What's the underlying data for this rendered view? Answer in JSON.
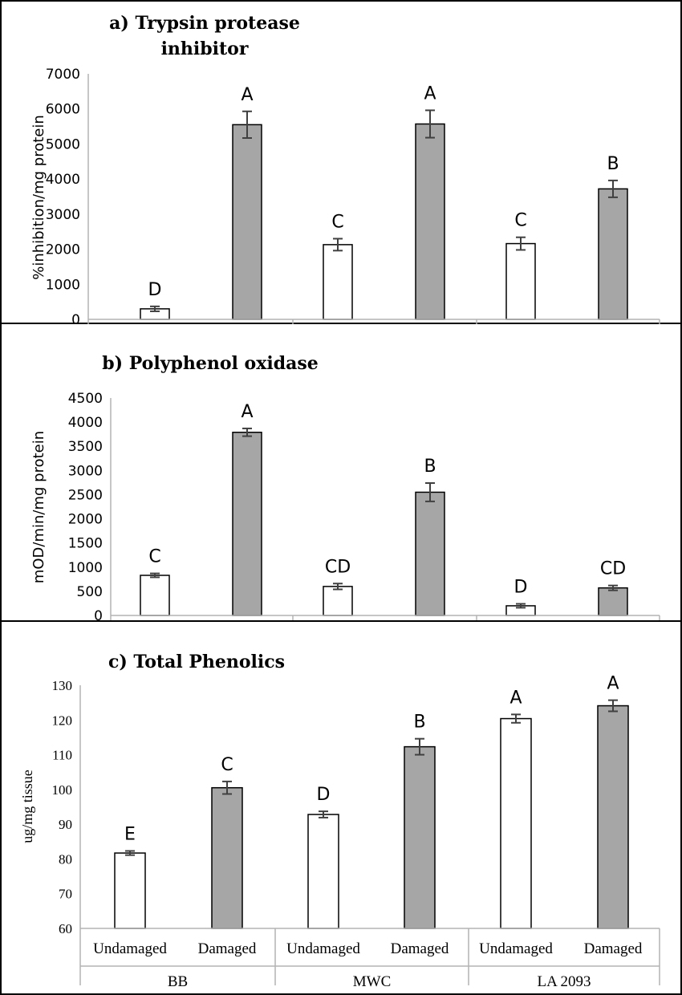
{
  "chart_data": [
    {
      "type": "bar",
      "title_line1": "a) Trypsin protease",
      "title_line2": "inhibitor",
      "ylabel": "%inhibition/mg protein",
      "ylim": [
        0,
        7000
      ],
      "yticks": [
        "0",
        "1000",
        "2000",
        "3000",
        "4000",
        "5000",
        "6000",
        "7000"
      ],
      "grid": false,
      "categories": [
        "Undamaged",
        "Damaged",
        "Undamaged",
        "Damaged",
        "Undamaged",
        "Damaged"
      ],
      "groups": [
        "BB",
        "MWC",
        "LA 2093"
      ],
      "values": [
        300,
        5550,
        2130,
        5570,
        2160,
        3720
      ],
      "errors": [
        70,
        380,
        170,
        390,
        180,
        240
      ],
      "letters": [
        "D",
        "A",
        "C",
        "A",
        "C",
        "B"
      ],
      "colors": [
        "#ffffff",
        "#a6a6a6",
        "#ffffff",
        "#a6a6a6",
        "#ffffff",
        "#a6a6a6"
      ]
    },
    {
      "type": "bar",
      "title": "b) Polyphenol oxidase",
      "ylabel": "mOD/min/mg protein",
      "ylim": [
        0,
        4500
      ],
      "yticks": [
        "0",
        "500",
        "1000",
        "1500",
        "2000",
        "2500",
        "3000",
        "3500",
        "4000",
        "4500"
      ],
      "grid": false,
      "categories": [
        "Undamaged",
        "Damaged",
        "Undamaged",
        "Damaged",
        "Undamaged",
        "Damaged"
      ],
      "groups": [
        "BB",
        "MWC",
        "LA 2093"
      ],
      "values": [
        830,
        3790,
        600,
        2550,
        200,
        570
      ],
      "errors": [
        40,
        80,
        60,
        190,
        40,
        50
      ],
      "letters": [
        "C",
        "A",
        "CD",
        "B",
        "D",
        "CD"
      ],
      "colors": [
        "#ffffff",
        "#a6a6a6",
        "#ffffff",
        "#a6a6a6",
        "#ffffff",
        "#a6a6a6"
      ]
    },
    {
      "type": "bar",
      "title": "c) Total Phenolics",
      "ylabel": "ug/mg tissue",
      "ylim": [
        60,
        130
      ],
      "yticks": [
        "60",
        "70",
        "80",
        "90",
        "100",
        "110",
        "120",
        "130"
      ],
      "grid": false,
      "categories": [
        "Undamaged",
        "Damaged",
        "Undamaged",
        "Damaged",
        "Undamaged",
        "Damaged"
      ],
      "groups": [
        "BB",
        "MWC",
        "LA 2093"
      ],
      "values": [
        81.7,
        100.5,
        92.8,
        112.3,
        120.4,
        124.1
      ],
      "errors": [
        0.6,
        1.8,
        0.9,
        2.3,
        1.2,
        1.6
      ],
      "letters": [
        "E",
        "C",
        "D",
        "B",
        "A",
        "A"
      ],
      "colors": [
        "#ffffff",
        "#a6a6a6",
        "#ffffff",
        "#a6a6a6",
        "#ffffff",
        "#a6a6a6"
      ]
    }
  ]
}
